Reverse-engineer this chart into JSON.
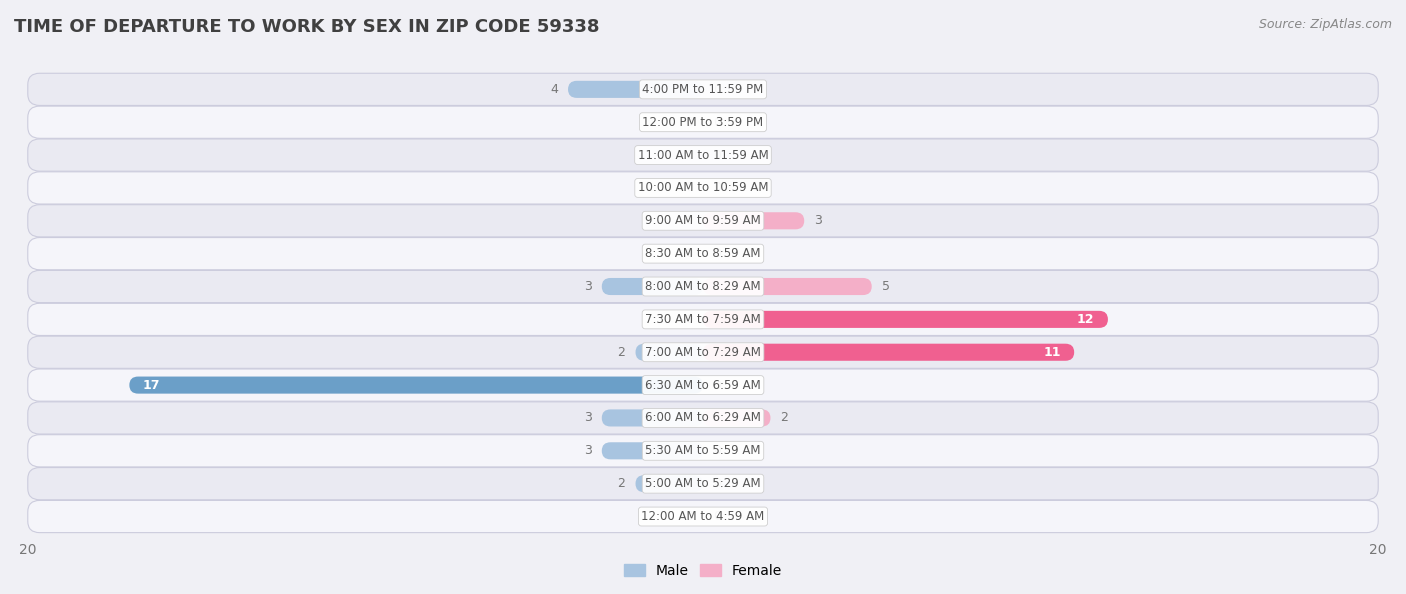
{
  "title": "TIME OF DEPARTURE TO WORK BY SEX IN ZIP CODE 59338",
  "source": "Source: ZipAtlas.com",
  "categories": [
    "12:00 AM to 4:59 AM",
    "5:00 AM to 5:29 AM",
    "5:30 AM to 5:59 AM",
    "6:00 AM to 6:29 AM",
    "6:30 AM to 6:59 AM",
    "7:00 AM to 7:29 AM",
    "7:30 AM to 7:59 AM",
    "8:00 AM to 8:29 AM",
    "8:30 AM to 8:59 AM",
    "9:00 AM to 9:59 AM",
    "10:00 AM to 10:59 AM",
    "11:00 AM to 11:59 AM",
    "12:00 PM to 3:59 PM",
    "4:00 PM to 11:59 PM"
  ],
  "male_values": [
    0,
    2,
    3,
    3,
    17,
    2,
    0,
    3,
    0,
    0,
    0,
    0,
    0,
    4
  ],
  "female_values": [
    0,
    0,
    0,
    2,
    0,
    11,
    12,
    5,
    0,
    3,
    0,
    0,
    0,
    0
  ],
  "male_color_normal": "#a8c4e0",
  "male_color_large": "#6b9fc8",
  "female_color_normal": "#f4afc8",
  "female_color_large": "#f06090",
  "large_threshold": 10,
  "xlim": 20,
  "bar_height": 0.52,
  "bg_color": "#f0f0f5",
  "row_color_light": "#f5f5fa",
  "row_color_dark": "#eaeaf2",
  "title_color": "#404040",
  "source_color": "#888888",
  "value_label_color": "#777777",
  "category_label_color": "#555555",
  "category_label_bg": "white",
  "category_label_fontsize": 8.5,
  "value_label_fontsize": 9,
  "title_fontsize": 13,
  "source_fontsize": 9
}
